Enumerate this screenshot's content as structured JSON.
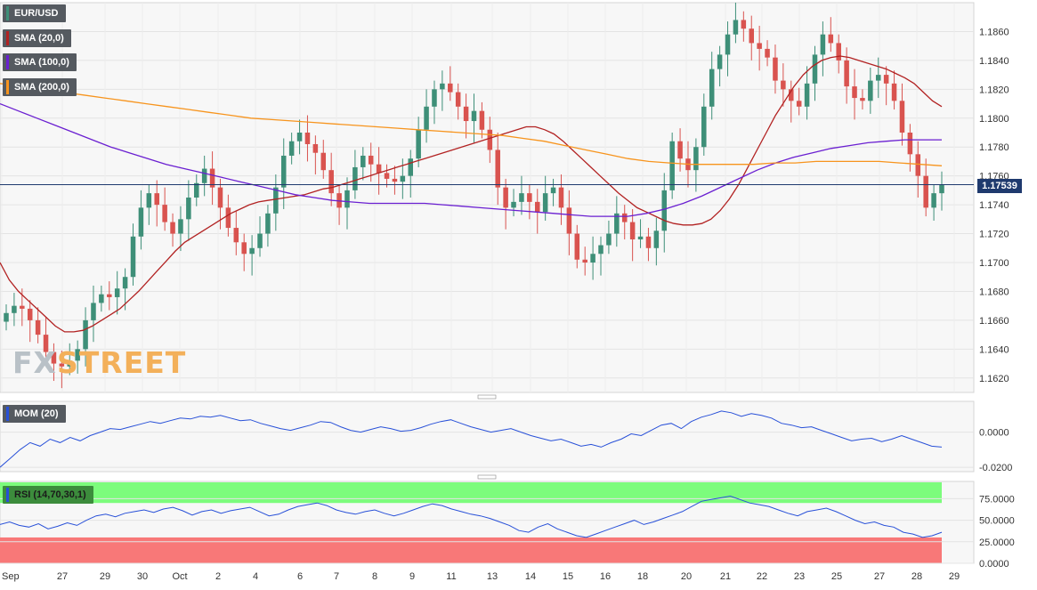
{
  "colors": {
    "bull": "#3e8f78",
    "bear": "#d9534f",
    "sma20": "#b22222",
    "sma100": "#6a1fd1",
    "sma200": "#f7941d",
    "momentum": "#2850d8",
    "rsi": "#2850d8",
    "rsi_overbought_zone": "#7cfc7c",
    "rsi_oversold_zone": "#f87878"
  },
  "watermark": {
    "prefix": "FX",
    "suffix": "STREET"
  },
  "last_price_label": "1.17539",
  "chart_data": [
    {
      "type": "candlestick",
      "title": "EUR/USD",
      "legend": [
        "SMA (20,0)",
        "SMA (100,0)",
        "SMA (200,0)"
      ],
      "legend_placement": "top-left",
      "ylim": [
        1.161,
        1.188
      ],
      "yticks": [
        "1.1620",
        "1.1640",
        "1.1660",
        "1.1680",
        "1.1700",
        "1.1720",
        "1.1740",
        "1.1760",
        "1.1780",
        "1.1800",
        "1.1820",
        "1.1840",
        "1.1860"
      ],
      "xticks": [
        "Sep",
        "27",
        "29",
        "30",
        "Oct",
        "2",
        "4",
        "6",
        "7",
        "8",
        "9",
        "11",
        "13",
        "14",
        "15",
        "16",
        "18",
        "20",
        "21",
        "22",
        "23",
        "25",
        "27",
        "28",
        "29"
      ],
      "grid": true,
      "last_price": 1.17539,
      "close": [
        1.1665,
        1.167,
        1.1668,
        1.166,
        1.165,
        1.1638,
        1.163,
        1.1628,
        1.1632,
        1.164,
        1.166,
        1.1672,
        1.1678,
        1.1676,
        1.1682,
        1.169,
        1.1718,
        1.1738,
        1.1748,
        1.174,
        1.1728,
        1.172,
        1.173,
        1.1745,
        1.1755,
        1.1765,
        1.1752,
        1.1738,
        1.1724,
        1.1714,
        1.1706,
        1.171,
        1.172,
        1.1734,
        1.1752,
        1.1774,
        1.1784,
        1.179,
        1.1782,
        1.1776,
        1.1764,
        1.1748,
        1.1738,
        1.175,
        1.1766,
        1.1774,
        1.1768,
        1.1762,
        1.1758,
        1.1756,
        1.176,
        1.1772,
        1.1792,
        1.1808,
        1.182,
        1.1824,
        1.1818,
        1.1808,
        1.1798,
        1.1805,
        1.1792,
        1.1778,
        1.1752,
        1.1738,
        1.1742,
        1.1748,
        1.1742,
        1.1735,
        1.1748,
        1.1752,
        1.1738,
        1.172,
        1.1702,
        1.17,
        1.1706,
        1.1712,
        1.172,
        1.1734,
        1.1728,
        1.1716,
        1.1718,
        1.171,
        1.1722,
        1.175,
        1.1784,
        1.1772,
        1.1764,
        1.178,
        1.1808,
        1.1834,
        1.1844,
        1.1858,
        1.1868,
        1.1862,
        1.1852,
        1.1848,
        1.1842,
        1.1826,
        1.182,
        1.1812,
        1.1808,
        1.1824,
        1.1844,
        1.1858,
        1.1852,
        1.184,
        1.1822,
        1.1814,
        1.1812,
        1.1826,
        1.183,
        1.1824,
        1.1812,
        1.179,
        1.1775,
        1.176,
        1.1738,
        1.1748,
        1.1754
      ],
      "series": [
        {
          "name": "SMA (20,0)",
          "values": [
            1.17,
            1.1688,
            1.168,
            1.1674,
            1.1668,
            1.1662,
            1.1656,
            1.1652,
            1.1652,
            1.1653,
            1.1656,
            1.166,
            1.1664,
            1.1668,
            1.1674,
            1.168,
            1.1687,
            1.1694,
            1.1701,
            1.1708,
            1.1714,
            1.1718,
            1.1722,
            1.1726,
            1.173,
            1.1734,
            1.1737,
            1.174,
            1.1742,
            1.1743,
            1.1744,
            1.1745,
            1.1746,
            1.1747,
            1.1749,
            1.1751,
            1.1752,
            1.1754,
            1.1756,
            1.1758,
            1.176,
            1.1762,
            1.1764,
            1.1766,
            1.1768,
            1.177,
            1.1772,
            1.1774,
            1.1776,
            1.1778,
            1.178,
            1.1782,
            1.1784,
            1.1786,
            1.1788,
            1.179,
            1.1792,
            1.1794,
            1.1794,
            1.1792,
            1.1789,
            1.1784,
            1.1778,
            1.1772,
            1.1766,
            1.176,
            1.1754,
            1.1748,
            1.1743,
            1.1738,
            1.1735,
            1.1732,
            1.1729,
            1.1727,
            1.1726,
            1.1726,
            1.1727,
            1.173,
            1.1736,
            1.1744,
            1.1754,
            1.1766,
            1.1778,
            1.179,
            1.1802,
            1.1812,
            1.1822,
            1.183,
            1.1836,
            1.184,
            1.1842,
            1.1843,
            1.1842,
            1.184,
            1.1838,
            1.1836,
            1.1834,
            1.1831,
            1.1828,
            1.1824,
            1.1818,
            1.1812,
            1.1808
          ]
        },
        {
          "name": "SMA (100,0)",
          "values": [
            1.181,
            1.1805,
            1.18,
            1.1795,
            1.179,
            1.1785,
            1.178,
            1.1776,
            1.1772,
            1.1768,
            1.1765,
            1.1762,
            1.1759,
            1.1756,
            1.1753,
            1.175,
            1.1747,
            1.1745,
            1.1743,
            1.1742,
            1.1741,
            1.1741,
            1.1741,
            1.1741,
            1.174,
            1.1739,
            1.1738,
            1.1737,
            1.1736,
            1.1735,
            1.1734,
            1.1733,
            1.1732,
            1.1732,
            1.1732,
            1.1734,
            1.1737,
            1.1741,
            1.1746,
            1.1752,
            1.1758,
            1.1764,
            1.1769,
            1.1773,
            1.1776,
            1.1779,
            1.1781,
            1.1783,
            1.1784,
            1.1785,
            1.1785,
            1.1785
          ]
        },
        {
          "name": "SMA (200,0)",
          "values": [
            1.1824,
            1.1822,
            1.182,
            1.1818,
            1.1816,
            1.1814,
            1.1812,
            1.181,
            1.1808,
            1.1806,
            1.1804,
            1.1802,
            1.18,
            1.1799,
            1.1798,
            1.1797,
            1.1796,
            1.1795,
            1.1794,
            1.1793,
            1.1792,
            1.1791,
            1.179,
            1.1789,
            1.1788,
            1.1786,
            1.1784,
            1.1781,
            1.1778,
            1.1775,
            1.1772,
            1.177,
            1.1769,
            1.1768,
            1.1768,
            1.1768,
            1.1768,
            1.1769,
            1.1769,
            1.177,
            1.177,
            1.177,
            1.177,
            1.1769,
            1.1768,
            1.1767
          ]
        }
      ]
    },
    {
      "type": "line",
      "title": "MOM (20)",
      "ylim": [
        -0.0225,
        0.0175
      ],
      "yticks": [
        "0.0000",
        "-0.0200"
      ],
      "series": [
        {
          "name": "MOM (20)",
          "values": [
            -0.02,
            -0.015,
            -0.01,
            -0.006,
            -0.008,
            -0.004,
            -0.006,
            -0.003,
            -0.005,
            -0.002,
            0.0,
            0.002,
            0.0015,
            0.003,
            0.0045,
            0.006,
            0.005,
            0.0065,
            0.008,
            0.0075,
            0.009,
            0.0085,
            0.0095,
            0.008,
            0.0065,
            0.007,
            0.005,
            0.0035,
            0.002,
            0.001,
            0.0025,
            0.004,
            0.006,
            0.0055,
            0.003,
            0.001,
            0.0,
            0.0015,
            0.003,
            0.002,
            0.0005,
            0.001,
            0.0025,
            0.0045,
            0.006,
            0.007,
            0.005,
            0.003,
            0.0015,
            0.0,
            0.001,
            0.002,
            0.0,
            -0.002,
            -0.0035,
            -0.005,
            -0.004,
            -0.006,
            -0.008,
            -0.007,
            -0.0085,
            -0.006,
            -0.004,
            -0.001,
            -0.002,
            0.001,
            0.004,
            0.005,
            0.002,
            0.006,
            0.0085,
            0.01,
            0.012,
            0.011,
            0.009,
            0.0105,
            0.0095,
            0.008,
            0.005,
            0.004,
            0.0025,
            0.003,
            0.001,
            -0.001,
            -0.003,
            -0.005,
            -0.004,
            -0.0035,
            -0.0055,
            -0.004,
            -0.002,
            -0.004,
            -0.006,
            -0.008,
            -0.0085
          ]
        }
      ]
    },
    {
      "type": "line",
      "title": "RSI (14,70,30,1)",
      "ylim": [
        0,
        95
      ],
      "yticks": [
        "75.0000",
        "50.0000",
        "25.0000",
        "0.0000"
      ],
      "zones": {
        "overbought": 70,
        "oversold": 30
      },
      "series": [
        {
          "name": "RSI (14,70,30,1)",
          "values": [
            45,
            48,
            44,
            42,
            46,
            40,
            43,
            47,
            44,
            50,
            55,
            57,
            54,
            58,
            60,
            62,
            59,
            63,
            65,
            61,
            56,
            60,
            62,
            58,
            61,
            63,
            65,
            60,
            55,
            57,
            62,
            66,
            68,
            70,
            67,
            62,
            59,
            57,
            60,
            62,
            58,
            55,
            58,
            62,
            66,
            69,
            67,
            63,
            60,
            57,
            55,
            52,
            48,
            44,
            38,
            36,
            42,
            46,
            40,
            36,
            32,
            30,
            34,
            38,
            42,
            46,
            50,
            45,
            48,
            52,
            56,
            60,
            66,
            72,
            74,
            76,
            78,
            74,
            70,
            68,
            66,
            62,
            58,
            55,
            60,
            62,
            64,
            60,
            55,
            50,
            46,
            48,
            44,
            42,
            36,
            34,
            30,
            32,
            36
          ]
        }
      ]
    }
  ]
}
